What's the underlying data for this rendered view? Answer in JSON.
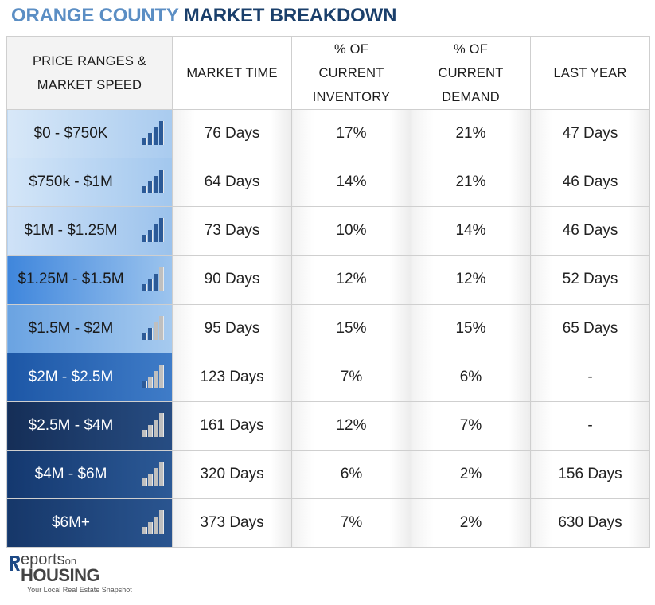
{
  "title": {
    "part1": "ORANGE COUNTY",
    "part2": "MARKET BREAKDOWN"
  },
  "headers": [
    [
      "PRICE RANGES &",
      "MARKET SPEED"
    ],
    [
      "MARKET TIME"
    ],
    [
      "% OF",
      "CURRENT",
      "INVENTORY"
    ],
    [
      "% OF",
      "CURRENT",
      "DEMAND"
    ],
    [
      "LAST YEAR"
    ]
  ],
  "rows": [
    {
      "range": "$0 - $750K",
      "market_time": "76 Days",
      "inventory": "17%",
      "demand": "21%",
      "last_year": "47 Days",
      "speed_level": 4,
      "bg": "#d8e8f8",
      "bg2": "#a9cbef",
      "text_color": "#1a1a1a"
    },
    {
      "range": "$750k - $1M",
      "market_time": "64 Days",
      "inventory": "14%",
      "demand": "21%",
      "last_year": "46 Days",
      "speed_level": 4,
      "bg": "#d4e6f8",
      "bg2": "#a2c7ee",
      "text_color": "#1a1a1a"
    },
    {
      "range": "$1M - $1.25M",
      "market_time": "73 Days",
      "inventory": "10%",
      "demand": "14%",
      "last_year": "46 Days",
      "speed_level": 4,
      "bg": "#cfe2f7",
      "bg2": "#9bc2ec",
      "text_color": "#1a1a1a"
    },
    {
      "range": "$1.25M - $1.5M",
      "market_time": "90 Days",
      "inventory": "12%",
      "demand": "12%",
      "last_year": "52 Days",
      "speed_level": 3,
      "bg": "#3f86dc",
      "bg2": "#9cc4ee",
      "text_color": "#1a1a1a"
    },
    {
      "range": "$1.5M - $2M",
      "market_time": "95 Days",
      "inventory": "15%",
      "demand": "15%",
      "last_year": "65 Days",
      "speed_level": 2,
      "bg": "#6aa3e2",
      "bg2": "#a6caef",
      "text_color": "#1a1a1a"
    },
    {
      "range": "$2M - $2.5M",
      "market_time": "123 Days",
      "inventory": "7%",
      "demand": "6%",
      "last_year": "-",
      "speed_level": 1,
      "bg": "#1d57a6",
      "bg2": "#3f7cc8",
      "text_color": "#ffffff"
    },
    {
      "range": "$2.5M - $4M",
      "market_time": "161 Days",
      "inventory": "12%",
      "demand": "7%",
      "last_year": "-",
      "speed_level": 0,
      "bg": "#152e57",
      "bg2": "#274d83",
      "text_color": "#ffffff"
    },
    {
      "range": "$4M - $6M",
      "market_time": "320 Days",
      "inventory": "6%",
      "demand": "2%",
      "last_year": "156 Days",
      "speed_level": 0,
      "bg": "#14386f",
      "bg2": "#2c5a97",
      "text_color": "#ffffff"
    },
    {
      "range": "$6M+",
      "market_time": "373 Days",
      "inventory": "7%",
      "demand": "2%",
      "last_year": "630 Days",
      "speed_level": 0,
      "bg": "#163769",
      "bg2": "#2a5590",
      "text_color": "#ffffff"
    }
  ],
  "colors": {
    "bar_active": "#2c5a97",
    "bar_inactive": "#bfbfbf",
    "bar_edge": "#e8e8e8"
  },
  "logo": {
    "line1": "eports",
    "line1_small": "on",
    "line2": "HOUSING",
    "tagline": "Your Local Real Estate Snapshot"
  }
}
